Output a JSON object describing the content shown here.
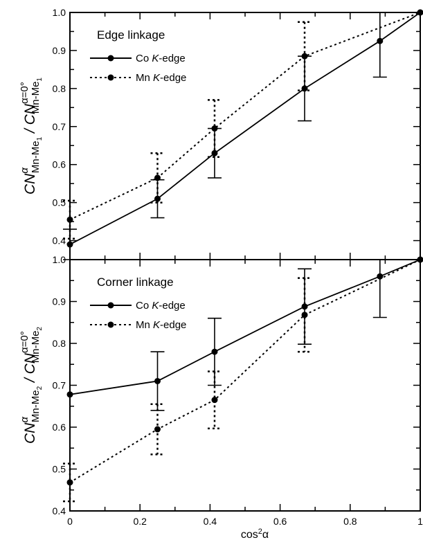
{
  "chart_data": [
    {
      "type": "line",
      "title": "Edge linkage",
      "ylabel": {
        "parts": [
          "CN",
          "α",
          "Mn-Me",
          "1",
          " / CN",
          "α=0°",
          "Mn-Me",
          "1"
        ]
      },
      "ylim": [
        0.35,
        1.0
      ],
      "yticks": [
        "0.4",
        "0.5",
        "0.6",
        "0.7",
        "0.8",
        "0.9",
        "1.0"
      ],
      "xlim": [
        0,
        1
      ],
      "legend_position": "top-left",
      "series": [
        {
          "name_parts": [
            "Co ",
            "K",
            "-edge"
          ],
          "style": "solid",
          "x": [
            0,
            0.25,
            0.413,
            0.67,
            0.885,
            1
          ],
          "y": [
            0.39,
            0.51,
            0.63,
            0.8,
            0.925,
            1.0
          ],
          "err": [
            0.04,
            0.05,
            0.065,
            0.085,
            0.095,
            0
          ]
        },
        {
          "name_parts": [
            "Mn ",
            "K",
            "-edge"
          ],
          "style": "dotted",
          "x": [
            0,
            0.25,
            0.413,
            0.67,
            1
          ],
          "y": [
            0.455,
            0.565,
            0.695,
            0.885,
            1.0
          ],
          "err": [
            0.05,
            0.065,
            0.075,
            0.09,
            0
          ]
        }
      ]
    },
    {
      "type": "line",
      "title": "Corner linkage",
      "ylabel": {
        "parts": [
          "CN",
          "α",
          "Mn-Me",
          "2",
          " / CN",
          "α=0°",
          "Mn-Me",
          "2"
        ]
      },
      "ylim": [
        0.4,
        1.0
      ],
      "yticks": [
        "0.4",
        "0.5",
        "0.6",
        "0.7",
        "0.8",
        "0.9",
        "1.0"
      ],
      "xlim": [
        0,
        1
      ],
      "xlabel_parts": [
        "cos",
        "2",
        "α"
      ],
      "xticks": [
        "0",
        "0.2",
        "0.4",
        "0.6",
        "0.8",
        "1"
      ],
      "legend_position": "top-left",
      "series": [
        {
          "name_parts": [
            "Co ",
            "K",
            "-edge"
          ],
          "style": "solid",
          "x": [
            0,
            0.25,
            0.413,
            0.67,
            0.885,
            1
          ],
          "y": [
            0.678,
            0.71,
            0.78,
            0.888,
            0.96,
            1.0
          ],
          "err": [
            0,
            0.07,
            0.08,
            0.09,
            0.098,
            0
          ]
        },
        {
          "name_parts": [
            "Mn ",
            "K",
            "-edge"
          ],
          "style": "dotted",
          "x": [
            0,
            0.25,
            0.413,
            0.67,
            1
          ],
          "y": [
            0.468,
            0.595,
            0.665,
            0.868,
            1.0
          ],
          "err": [
            0.045,
            0.06,
            0.068,
            0.088,
            0
          ]
        }
      ]
    }
  ]
}
